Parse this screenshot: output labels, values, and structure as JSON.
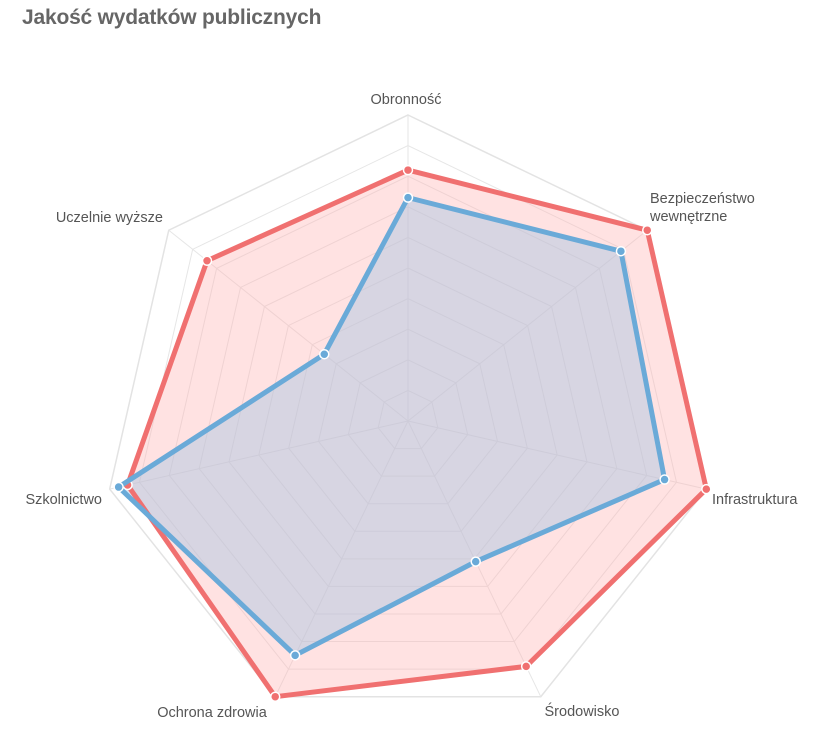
{
  "title": "Jakość wydatków publicznych",
  "chart_data": {
    "type": "radar",
    "title": "Jakość wydatków publicznych",
    "axes": [
      [
        "Obronność"
      ],
      [
        "Bezpieczeństwo",
        "wewnętrzne"
      ],
      [
        "Infrastruktura"
      ],
      [
        "Środowisko"
      ],
      [
        "Ochrona zdrowia"
      ],
      [
        "Szkolnictwo"
      ],
      [
        "Uczelnie wyższe"
      ]
    ],
    "rlim": [
      0,
      10
    ],
    "grid_levels": 10,
    "series": [
      {
        "values": [
          8.2,
          10.0,
          10.0,
          8.9,
          10.0,
          9.4,
          8.4
        ],
        "color": "#f07070",
        "fill": "#ffb3b3"
      },
      {
        "values": [
          7.3,
          8.9,
          8.6,
          5.1,
          8.5,
          9.7,
          3.5
        ],
        "color": "#6aaad8",
        "fill": "#a6c6e2"
      }
    ]
  }
}
